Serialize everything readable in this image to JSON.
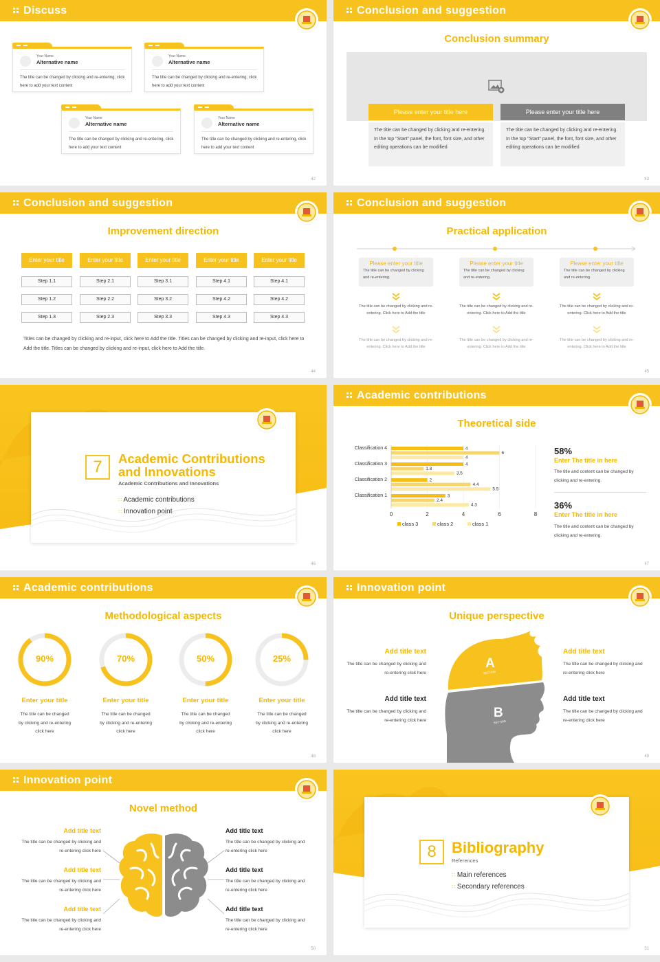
{
  "slides": {
    "s42": {
      "title": "Discuss",
      "page": "42",
      "cards": [
        {
          "name_label": "Your Name",
          "name": "Alternative name",
          "text": "The title can be changed by clicking and re-entering, click here to add your text content"
        },
        {
          "name_label": "Your Name",
          "name": "Alternative name",
          "text": "The title can be changed by clicking and re-entering, click here to add your text content"
        },
        {
          "name_label": "Your Name",
          "name": "Alternative name",
          "text": "The title can be changed by clicking and re-entering, click here to add your text content"
        },
        {
          "name_label": "Your Name",
          "name": "Alternative name",
          "text": "The title can be changed by clicking and re-entering, click here to add your text content"
        }
      ]
    },
    "s43": {
      "title": "Conclusion and suggestion",
      "subtitle": "Conclusion summary",
      "page": "43",
      "left_title": "Please enter your title here",
      "right_title": "Please enter your title here",
      "left_text": "The title can be changed by clicking and re-entering. In the top \"Start\" panel, the font, font size, and other editing operations can be modified",
      "right_text": "The title can be changed by clicking and re-entering. In the top \"Start\" panel, the font, font size, and other editing operations can be modified"
    },
    "s44": {
      "title": "Conclusion and suggestion",
      "subtitle": "Improvement direction",
      "page": "44",
      "columns": [
        {
          "header": "Enter your title",
          "steps": [
            "Step 1.1",
            "Step 1.2",
            "Step 1.3"
          ]
        },
        {
          "header": "Enter your title",
          "steps": [
            "Step 2.1",
            "Step 2.2",
            "Step 2.3"
          ]
        },
        {
          "header": "Enter your title",
          "steps": [
            "Step 3.1",
            "Step 3.2",
            "Step 3.3"
          ]
        },
        {
          "header": "Enter your title",
          "steps": [
            "Step 4.1",
            "Step 4.2",
            "Step 4.3"
          ]
        },
        {
          "header": "Enter your title",
          "steps": [
            "Step 4.1",
            "Step 4.2",
            "Step 4.3"
          ]
        }
      ],
      "footer": "Titles can be changed by clicking and re-input, click here to Add the title. Titles can be changed by clicking and re-input, click here to Add the title. Titles can be changed by clicking and re-input, click here to Add the title."
    },
    "s45": {
      "title": "Conclusion and suggestion",
      "subtitle": "Practical application",
      "page": "45",
      "columns": [
        {
          "head": "Please enter your title",
          "head_text": "The title can be changed by clicking and re-entering.",
          "t1": "The title can be changed by clicking and re-entering. Click here to Add the title",
          "t2": "The title can be changed by clicking and re-entering. Click here to Add the title"
        },
        {
          "head": "Please enter your title",
          "head_text": "The title can be changed by clicking and re-entering.",
          "t1": "The title can be changed by clicking and re-entering. Click here to Add the title",
          "t2": "The title can be changed by clicking and re-entering. Click here to Add the title"
        },
        {
          "head": "Please enter your title",
          "head_text": "The title can be changed by clicking and re-entering.",
          "t1": "The title can be changed by clicking and re-entering. Click here to Add the title",
          "t2": "The title can be changed by clicking and re-entering. Click here to Add the title"
        }
      ]
    },
    "s46": {
      "number": "7",
      "heading1": "Academic Contributions",
      "heading2": "and Innovations",
      "sub": "Academic Contributions and Innovations",
      "items": [
        "Academic contributions",
        "Innovation point"
      ],
      "page": "46"
    },
    "s47": {
      "title": "Academic contributions",
      "subtitle": "Theoretical side",
      "page": "47",
      "stat1_value": "58%",
      "stat1_title": "Enter The title in here",
      "stat1_text": "The title and content can be changed by clicking and re-entering.",
      "stat2_value": "36%",
      "stat2_title": "Enter The title in here",
      "stat2_text": "The title and content can be changed by clicking and re-entering."
    },
    "s48": {
      "title": "Academic contributions",
      "subtitle": "Methodological aspects",
      "page": "48",
      "rings": [
        {
          "label": "90%",
          "value": 0.9,
          "title": "Enter your title",
          "text": "The title can be changed by clicking and re-entering click here"
        },
        {
          "label": "70%",
          "value": 0.7,
          "title": "Enter your title",
          "text": "The title can be changed by clicking and re-entering click here"
        },
        {
          "label": "50%",
          "value": 0.5,
          "title": "Enter your title",
          "text": "The title can be changed by clicking and re-entering click here"
        },
        {
          "label": "25%",
          "value": 0.25,
          "title": "Enter your title",
          "text": "The title can be changed by clicking and re-entering click here"
        }
      ]
    },
    "s49": {
      "title": "Innovation point",
      "subtitle": "Unique perspective",
      "page": "49",
      "label_a": "A",
      "label_b": "B",
      "section": "SECTION",
      "left1_title": "Add title text",
      "left1_text": "The title can be changed by clicking and re-entering click here",
      "left2_title": "Add title text",
      "left2_text": "The title can be changed by clicking and re-entering click here",
      "right1_title": "Add title text",
      "right1_text": "The title can be changed by clicking and re-entering click here",
      "right2_title": "Add title text",
      "right2_text": "The title can be changed by clicking and re-entering click here"
    },
    "s50": {
      "title": "Innovation point",
      "subtitle": "Novel method",
      "page": "50",
      "items": [
        {
          "title": "Add title text",
          "text": "The title can be changed by clicking and re-entering click here"
        },
        {
          "title": "Add title text",
          "text": "The title can be changed by clicking and re-entering click here"
        },
        {
          "title": "Add title text",
          "text": "The title can be changed by clicking and re-entering click here"
        },
        {
          "title": "Add title text",
          "text": "The title can be changed by clicking and re-entering click here"
        },
        {
          "title": "Add title text",
          "text": "The title can be changed by clicking and re-entering click here"
        },
        {
          "title": "Add title text",
          "text": "The title can be changed by clicking and re-entering click here"
        }
      ]
    },
    "s51": {
      "number": "8",
      "heading": "Bibliography",
      "sub": "References",
      "items": [
        "Main references",
        "Secondary references"
      ],
      "page": "51"
    }
  },
  "chart_data": {
    "type": "bar",
    "orientation": "horizontal",
    "categories": [
      "Classification 1",
      "Classification 2",
      "Classification 3",
      "Classification 4"
    ],
    "series": [
      {
        "name": "class 3",
        "values": [
          3,
          2,
          4,
          4
        ]
      },
      {
        "name": "class 2",
        "values": [
          2.4,
          4.4,
          1.8,
          6
        ]
      },
      {
        "name": "class 1",
        "values": [
          4.3,
          5.5,
          3.5,
          4
        ]
      }
    ],
    "xlim": [
      0,
      8
    ],
    "xticks": [
      0,
      2,
      4,
      6,
      8
    ],
    "legend": "bottom",
    "grid": true,
    "colors": {
      "class 3": "#f6bd16",
      "class 2": "#f9d66a",
      "class 1": "#fce9a6"
    }
  },
  "theme": {
    "accent": "#f8c21e",
    "gray": "#8a8a8a"
  }
}
